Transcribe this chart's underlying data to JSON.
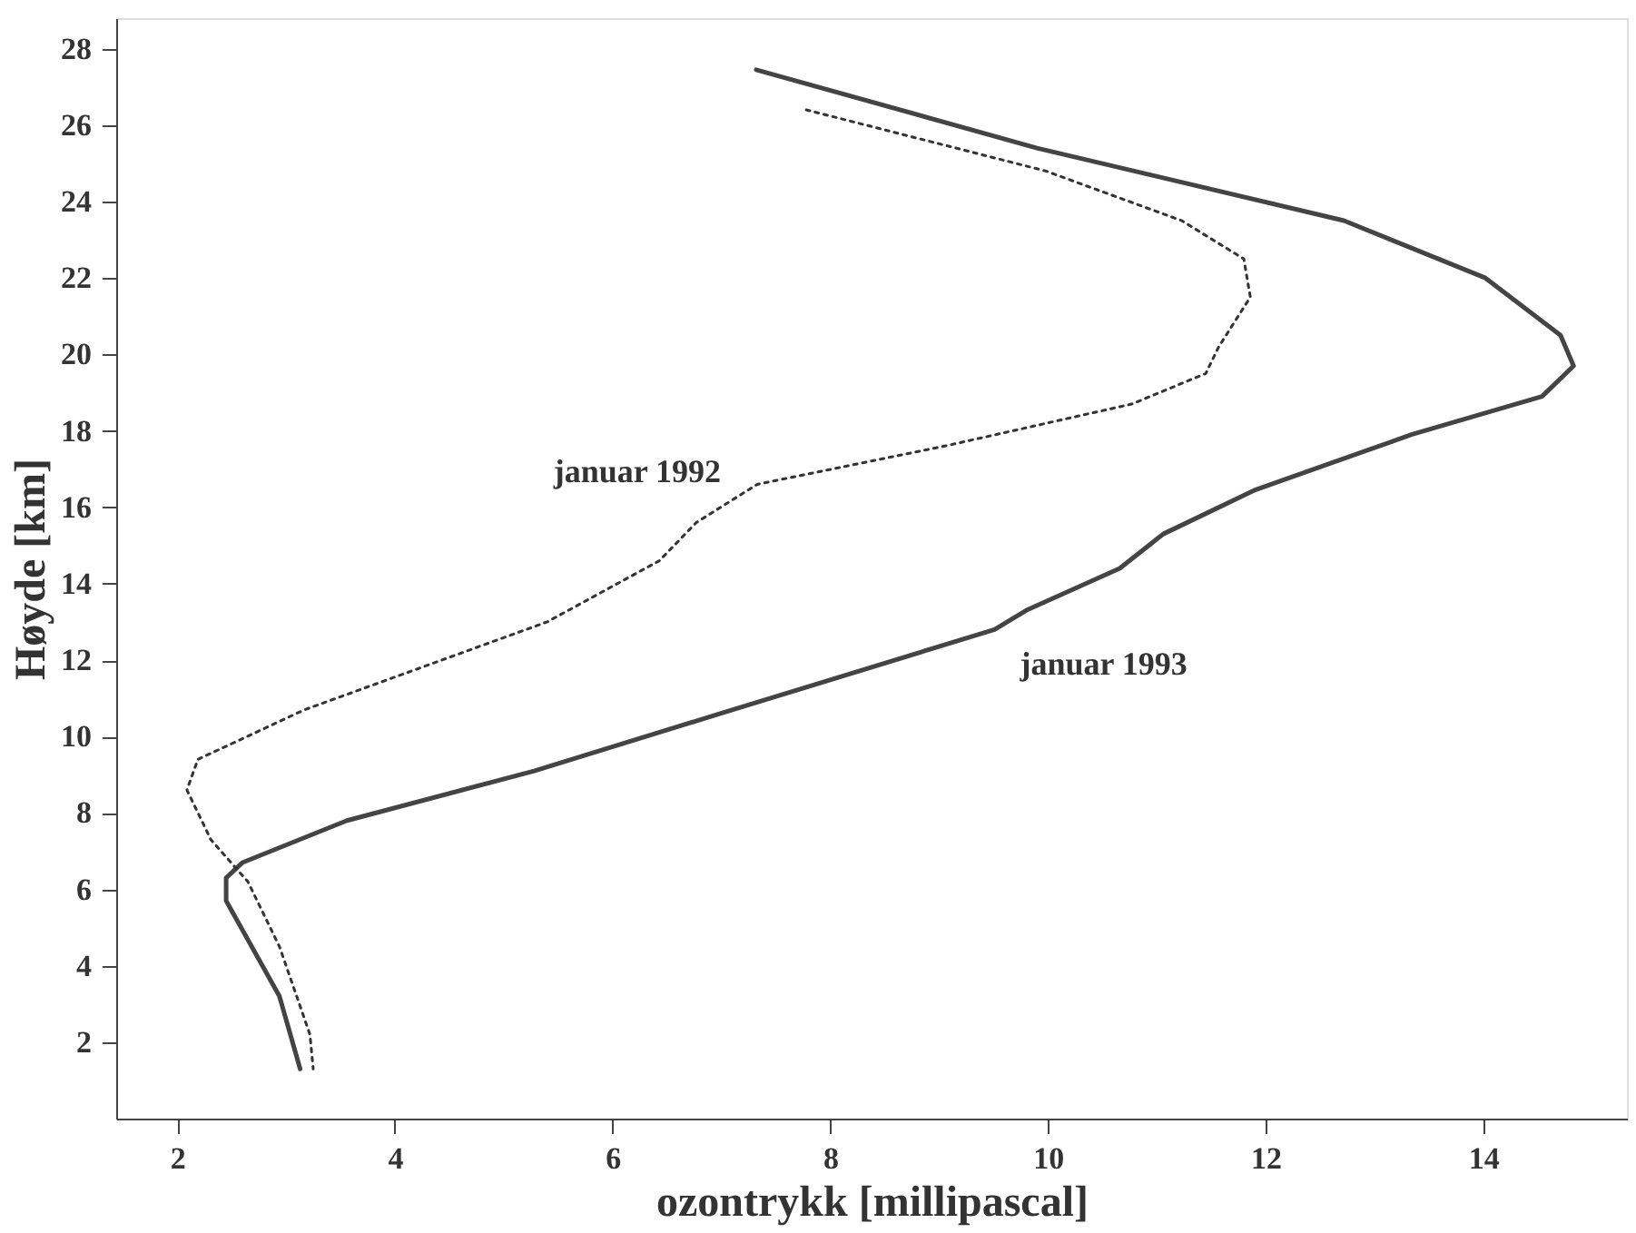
{
  "chart_data": {
    "type": "line",
    "xlabel": "ozontrykk [millipascal]",
    "ylabel": "Høyde [km]",
    "xlim": [
      1.44,
      15.32
    ],
    "ylim": [
      0,
      28.8
    ],
    "xticks": [
      2,
      4,
      6,
      8,
      10,
      12,
      14
    ],
    "yticks": [
      2,
      4,
      6,
      8,
      10,
      12,
      14,
      16,
      18,
      20,
      22,
      24,
      26,
      28
    ],
    "grid": false,
    "annotations": [
      {
        "text": "januar 1992",
        "x": 7.33,
        "y": 16.6
      },
      {
        "text": "januar 1993",
        "x": 9.51,
        "y": 12.8
      }
    ],
    "series": [
      {
        "color": "#444444",
        "line_style": "solid",
        "x": [
          7.32,
          9.9,
          12.72,
          14.02,
          14.71,
          14.83,
          14.54,
          13.34,
          11.91,
          11.06,
          10.66,
          9.8,
          9.51,
          6.99,
          5.28,
          3.56,
          2.6,
          2.45,
          2.45,
          2.94,
          3.13
        ],
        "values": [
          27.45,
          25.4,
          23.5,
          22.0,
          20.5,
          19.7,
          18.9,
          17.9,
          16.46,
          15.3,
          14.4,
          13.3,
          12.8,
          10.6,
          9.1,
          7.8,
          6.7,
          6.3,
          5.7,
          3.2,
          1.3
        ]
      },
      {
        "color": "#333333",
        "line_style": "dotted",
        "x": [
          7.78,
          9.98,
          11.23,
          11.8,
          11.86,
          11.57,
          11.45,
          10.77,
          9.05,
          7.33,
          6.77,
          6.43,
          5.4,
          4.14,
          3.17,
          2.19,
          2.09,
          2.31,
          2.65,
          2.94,
          3.22,
          3.25
        ],
        "values": [
          26.4,
          24.8,
          23.5,
          22.5,
          21.5,
          20.2,
          19.5,
          18.7,
          17.6,
          16.6,
          15.6,
          14.6,
          13.0,
          11.7,
          10.7,
          9.4,
          8.6,
          7.3,
          6.2,
          4.5,
          2.2,
          1.3
        ]
      }
    ]
  }
}
